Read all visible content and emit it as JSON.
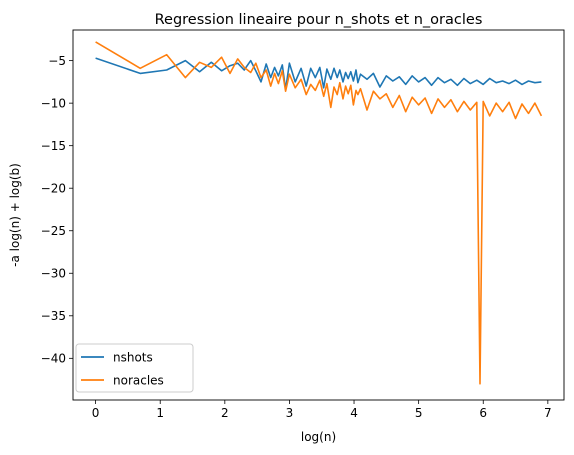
{
  "colors": {
    "nshots": "#1f77b4",
    "noracles": "#ff7f0e"
  },
  "chart_data": {
    "type": "line",
    "title": "Regression lineaire pour n_shots et n_oracles",
    "xlabel": "log(n)",
    "ylabel": "-a log(n) + log(b)",
    "xlim": [
      -0.35,
      7.25
    ],
    "ylim": [
      -44.9,
      -1.4
    ],
    "xticks": [
      0,
      1,
      2,
      3,
      4,
      5,
      6,
      7
    ],
    "yticks": [
      -5,
      -10,
      -15,
      -20,
      -25,
      -30,
      -35,
      -40
    ],
    "grid": false,
    "legend": {
      "location": "lower-left",
      "entries": [
        "nshots",
        "noracles"
      ]
    },
    "series": [
      {
        "name": "nshots",
        "color": "#1f77b4",
        "x": [
          0,
          0.69,
          1.1,
          1.39,
          1.61,
          1.79,
          1.95,
          2.08,
          2.2,
          2.3,
          2.4,
          2.48,
          2.56,
          2.64,
          2.71,
          2.77,
          2.83,
          2.89,
          2.94,
          3.0,
          3.09,
          3.18,
          3.26,
          3.33,
          3.4,
          3.47,
          3.53,
          3.58,
          3.64,
          3.69,
          3.74,
          3.78,
          3.83,
          3.87,
          3.91,
          3.95,
          3.99,
          4.03,
          4.06,
          4.1,
          4.2,
          4.3,
          4.4,
          4.5,
          4.6,
          4.7,
          4.8,
          4.9,
          5.0,
          5.1,
          5.2,
          5.3,
          5.4,
          5.5,
          5.6,
          5.7,
          5.8,
          5.9,
          6.0,
          6.1,
          6.2,
          6.3,
          6.4,
          6.5,
          6.6,
          6.7,
          6.8,
          6.9
        ],
        "y": [
          -4.7,
          -6.5,
          -6.1,
          -5.0,
          -6.3,
          -5.2,
          -6.2,
          -5.6,
          -5.3,
          -6.1,
          -5.0,
          -6.2,
          -7.5,
          -5.4,
          -7.0,
          -5.8,
          -6.8,
          -5.5,
          -8.4,
          -5.3,
          -7.5,
          -5.9,
          -8.0,
          -5.9,
          -7.0,
          -5.8,
          -8.2,
          -6.0,
          -7.2,
          -5.9,
          -7.0,
          -6.1,
          -7.5,
          -6.4,
          -7.1,
          -6.3,
          -7.4,
          -6.1,
          -7.6,
          -6.6,
          -7.2,
          -6.5,
          -8.1,
          -6.8,
          -7.4,
          -6.9,
          -7.8,
          -6.8,
          -7.5,
          -7.0,
          -7.9,
          -7.0,
          -7.6,
          -7.2,
          -7.9,
          -7.1,
          -7.7,
          -7.3,
          -7.8,
          -7.1,
          -7.6,
          -7.4,
          -7.7,
          -7.3,
          -7.8,
          -7.4,
          -7.6,
          -7.5
        ]
      },
      {
        "name": "noracles",
        "color": "#ff7f0e",
        "x": [
          0,
          0.69,
          1.1,
          1.39,
          1.61,
          1.79,
          1.95,
          2.08,
          2.2,
          2.3,
          2.4,
          2.48,
          2.56,
          2.64,
          2.71,
          2.77,
          2.83,
          2.89,
          2.94,
          3.0,
          3.09,
          3.18,
          3.26,
          3.33,
          3.4,
          3.47,
          3.53,
          3.58,
          3.64,
          3.69,
          3.74,
          3.78,
          3.83,
          3.87,
          3.91,
          3.95,
          3.99,
          4.03,
          4.06,
          4.1,
          4.2,
          4.3,
          4.4,
          4.5,
          4.6,
          4.7,
          4.8,
          4.9,
          5.0,
          5.1,
          5.2,
          5.3,
          5.4,
          5.5,
          5.6,
          5.7,
          5.8,
          5.9,
          5.95,
          6.0,
          6.1,
          6.2,
          6.3,
          6.4,
          6.5,
          6.6,
          6.7,
          6.8,
          6.9
        ],
        "y": [
          -2.8,
          -5.9,
          -4.3,
          -7.0,
          -5.2,
          -5.8,
          -4.6,
          -6.5,
          -4.8,
          -5.8,
          -6.4,
          -5.3,
          -7.0,
          -6.1,
          -8.0,
          -6.5,
          -7.7,
          -6.2,
          -8.6,
          -6.6,
          -8.2,
          -7.2,
          -9.0,
          -7.8,
          -8.5,
          -7.3,
          -9.2,
          -7.7,
          -10.5,
          -8.1,
          -9.0,
          -7.6,
          -9.5,
          -8.0,
          -8.9,
          -7.9,
          -10.2,
          -8.5,
          -9.0,
          -8.3,
          -10.8,
          -8.6,
          -9.5,
          -8.9,
          -10.5,
          -9.1,
          -11.0,
          -9.3,
          -10.2,
          -9.4,
          -11.2,
          -9.5,
          -10.5,
          -9.6,
          -11.0,
          -9.8,
          -10.8,
          -9.9,
          -43.0,
          -9.8,
          -11.5,
          -10.0,
          -11.0,
          -9.9,
          -11.8,
          -10.1,
          -11.2,
          -10.0,
          -11.5
        ]
      }
    ]
  }
}
